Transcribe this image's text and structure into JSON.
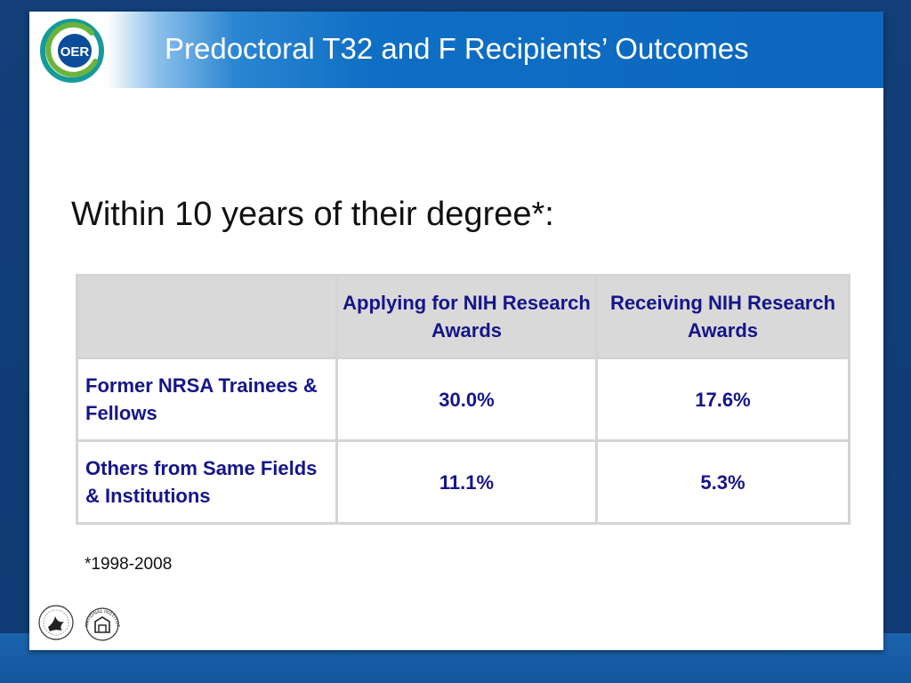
{
  "slide": {
    "title": "Predoctoral T32 and F Recipients’ Outcomes",
    "logo_text": "OER",
    "subtitle": "Within 10 years of their degree*:",
    "footnote": "*1998-2008",
    "colors": {
      "header_blue": "#0b66bd",
      "table_text": "#15158a",
      "header_cell_bg": "#d9d9d9",
      "logo_green": "#6bb33a",
      "logo_teal": "#159a9c"
    }
  },
  "table": {
    "headers": [
      "",
      "Applying for NIH Research Awards",
      "Receiving NIH Research Awards"
    ],
    "rows": [
      {
        "label": "Former NRSA Trainees & Fellows",
        "applying": "30.0%",
        "receiving": "17.6%"
      },
      {
        "label": "Others from Same Fields & Institutions",
        "applying": "11.1%",
        "receiving": "5.3%"
      }
    ]
  },
  "logos": {
    "hhs": "hhs-seal-icon",
    "nih": "nih-seal-icon",
    "nih_text": "NATIONAL INSTITUTES OF HEALTH"
  }
}
